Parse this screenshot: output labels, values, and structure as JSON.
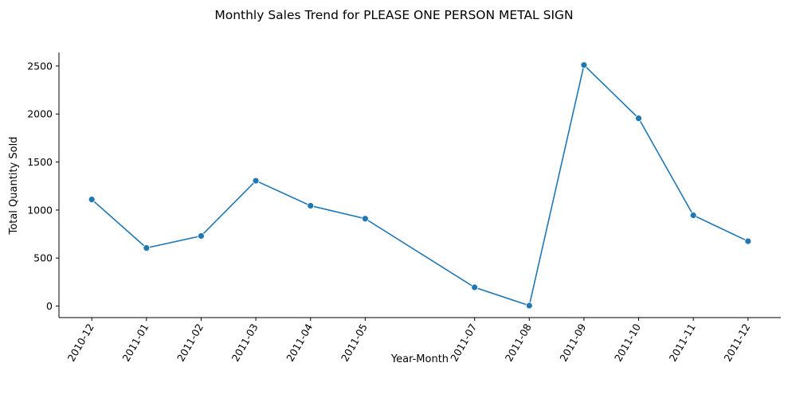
{
  "chart_data": {
    "type": "line",
    "title": "Monthly Sales Trend for PLEASE ONE PERSON METAL SIGN",
    "xlabel": "Year-Month",
    "ylabel": "Total Quantity Sold",
    "x": [
      "2010-12",
      "2011-01",
      "2011-02",
      "2011-03",
      "2011-04",
      "2011-05",
      "2011-07",
      "2011-08",
      "2011-09",
      "2011-10",
      "2011-11",
      "2011-12"
    ],
    "series": [
      {
        "values": [
          1110,
          605,
          730,
          1305,
          1045,
          910,
          195,
          5,
          2510,
          1955,
          945,
          675
        ],
        "color": "#1f77b4"
      }
    ],
    "ylim": [
      -120,
      2640
    ],
    "yticks": [
      0,
      500,
      1000,
      1500,
      2000,
      2500
    ],
    "grid": false,
    "legend": "none"
  }
}
